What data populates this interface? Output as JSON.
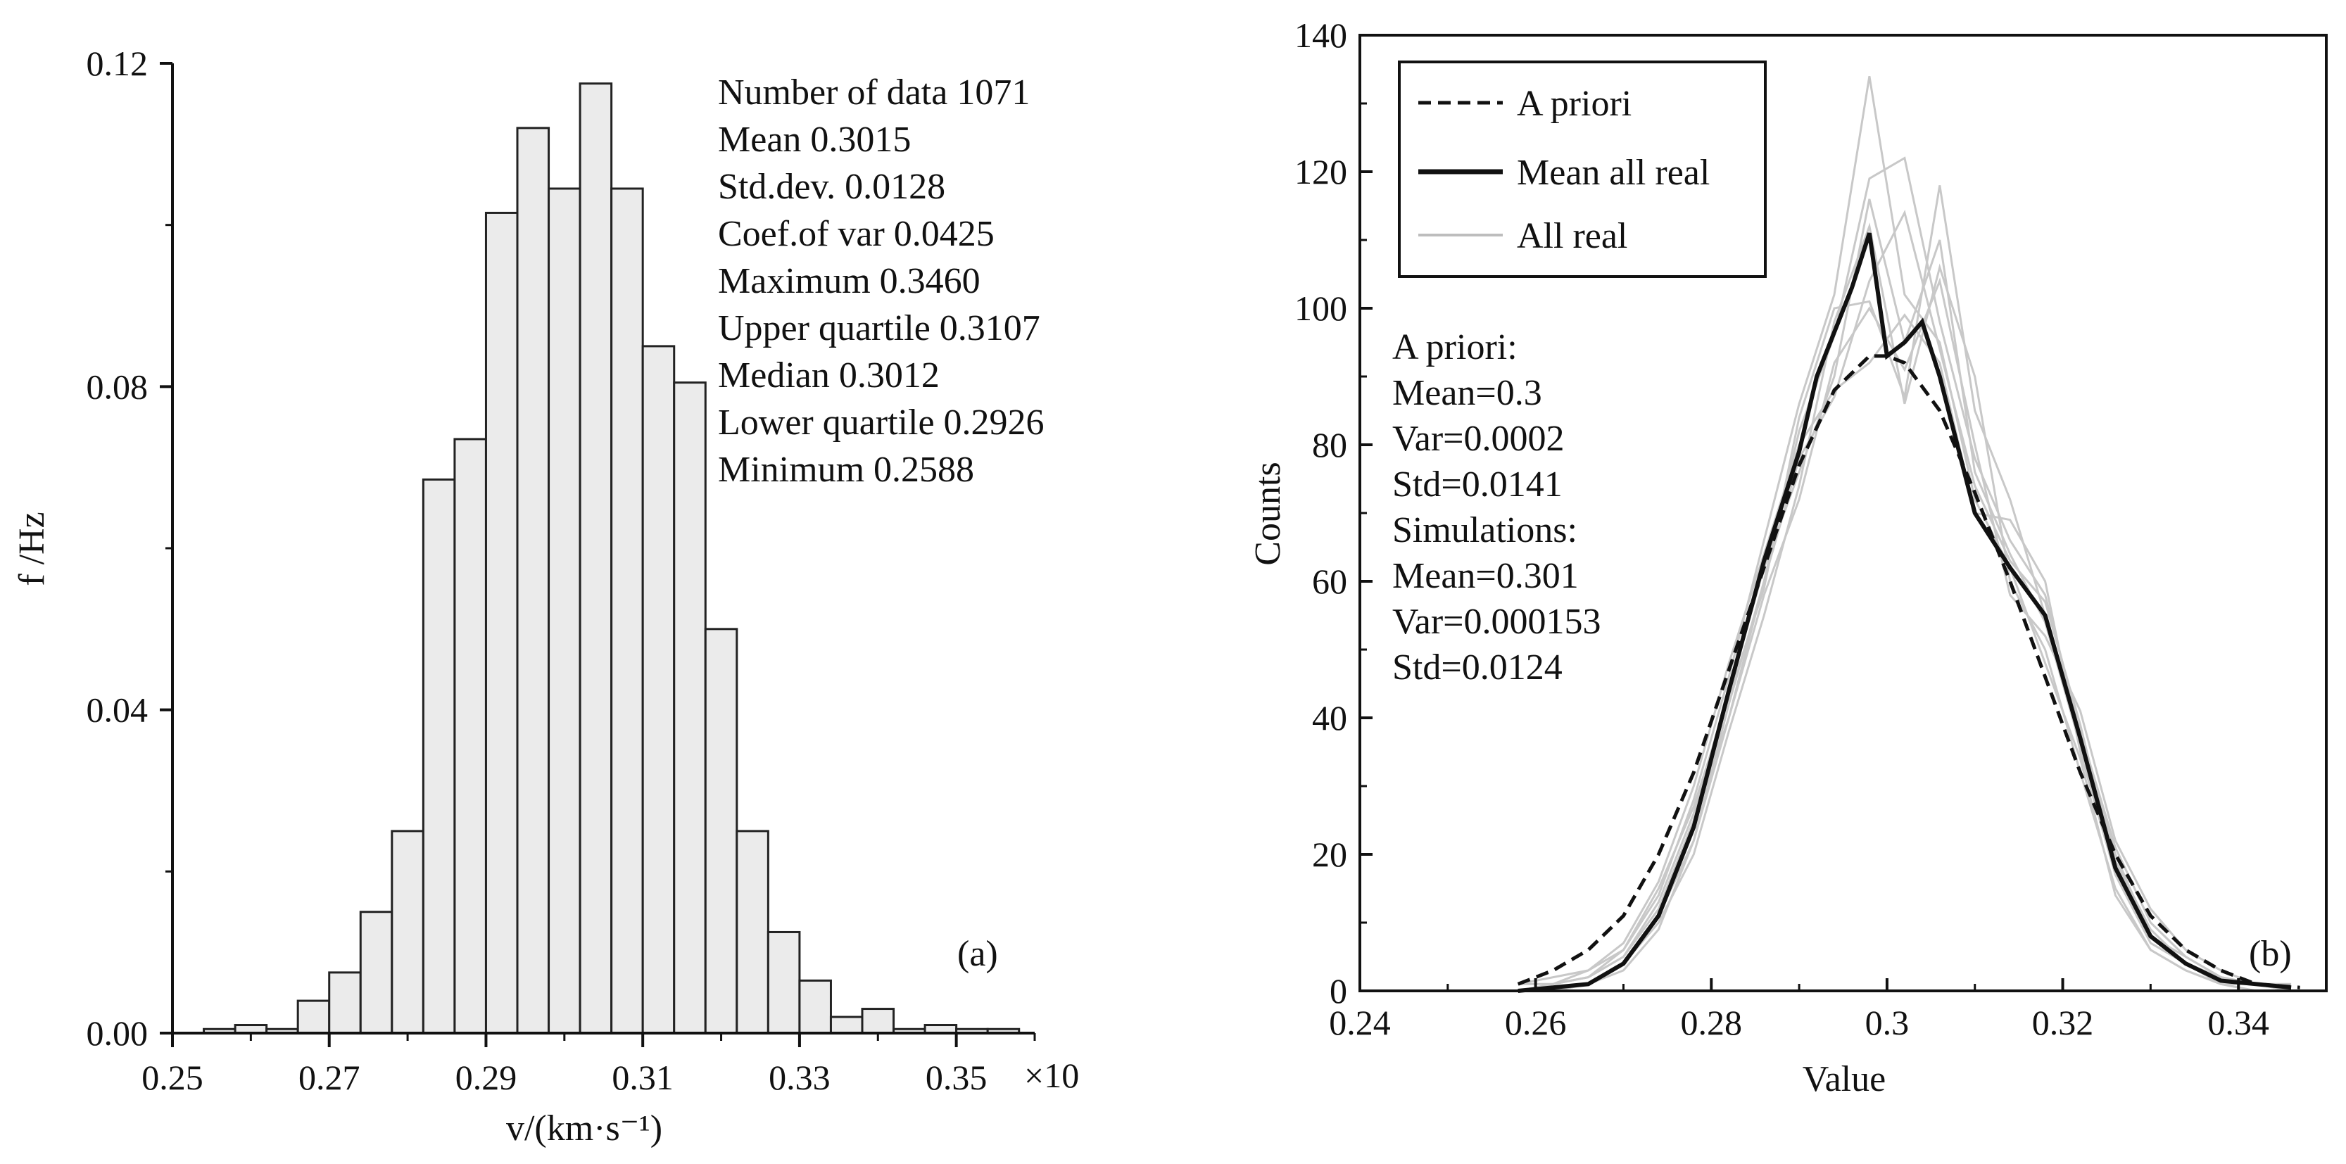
{
  "chart_data": [
    {
      "panel": "a",
      "type": "bar",
      "panel_label": "(a)",
      "ylabel": "f /Hz",
      "xlabel": "v/(km·s⁻¹)",
      "x_multiplier": "×10",
      "xlim": [
        0.25,
        0.36
      ],
      "ylim": [
        0,
        0.12
      ],
      "xticks": [
        "0.25",
        "0.27",
        "0.29",
        "0.31",
        "0.33",
        "0.35"
      ],
      "yticks": [
        "0.00",
        "0.04",
        "0.08",
        "0.12"
      ],
      "bin_width": 0.004,
      "bin_starts": [
        0.254,
        0.258,
        0.262,
        0.266,
        0.27,
        0.274,
        0.278,
        0.282,
        0.286,
        0.29,
        0.294,
        0.298,
        0.302,
        0.306,
        0.31,
        0.314,
        0.318,
        0.322,
        0.326,
        0.33,
        0.334,
        0.338,
        0.342,
        0.346,
        0.35,
        0.354
      ],
      "values": [
        0.0005,
        0.001,
        0.0005,
        0.004,
        0.0075,
        0.015,
        0.025,
        0.0685,
        0.0735,
        0.1015,
        0.112,
        0.1045,
        0.1175,
        0.1045,
        0.085,
        0.0805,
        0.05,
        0.025,
        0.0125,
        0.0065,
        0.002,
        0.003,
        0.0005,
        0.001,
        0.0005,
        0.0005
      ],
      "stats": [
        "Number of data  1071",
        "Mean  0.3015",
        "Std.dev.  0.0128",
        "Coef.of var  0.0425",
        "Maximum  0.3460",
        "Upper quartile  0.3107",
        "Median  0.3012",
        "Lower quartile  0.2926",
        "Minimum  0.2588"
      ]
    },
    {
      "panel": "b",
      "type": "line",
      "panel_label": "(b)",
      "xlabel": "Value",
      "ylabel": "Counts",
      "xlim": [
        0.24,
        0.35
      ],
      "ylim": [
        0,
        140
      ],
      "xticks": [
        "0.24",
        "0.26",
        "0.28",
        "0.3",
        "0.32",
        "0.34"
      ],
      "yticks": [
        "0",
        "20",
        "40",
        "60",
        "80",
        "100",
        "120",
        "140"
      ],
      "legend": {
        "placement": "top-left",
        "entries": [
          "A priori",
          "Mean all real",
          "All real"
        ]
      },
      "annotation": [
        "A priori:",
        "Mean=0.3",
        "Var=0.0002",
        "Std=0.0141",
        "Simulations:",
        "Mean=0.301",
        "Var=0.000153",
        "Std=0.0124"
      ],
      "series": [
        {
          "name": "A priori",
          "style": "dashed",
          "x": [
            0.258,
            0.262,
            0.266,
            0.27,
            0.274,
            0.278,
            0.282,
            0.286,
            0.29,
            0.294,
            0.298,
            0.3,
            0.302,
            0.306,
            0.31,
            0.314,
            0.318,
            0.322,
            0.326,
            0.33,
            0.334,
            0.338,
            0.342,
            0.347
          ],
          "y": [
            1,
            3,
            6,
            11,
            20,
            32,
            47,
            62,
            77,
            88,
            93,
            93,
            92,
            85,
            73,
            60,
            46,
            32,
            20,
            11,
            6,
            3,
            1,
            0.5
          ]
        },
        {
          "name": "Mean all real",
          "style": "solid",
          "x": [
            0.258,
            0.262,
            0.266,
            0.27,
            0.274,
            0.278,
            0.282,
            0.286,
            0.29,
            0.292,
            0.296,
            0.298,
            0.3,
            0.302,
            0.304,
            0.306,
            0.31,
            0.314,
            0.318,
            0.322,
            0.326,
            0.33,
            0.332,
            0.334,
            0.338,
            0.342,
            0.346
          ],
          "y": [
            0,
            0.5,
            1,
            4,
            11,
            24,
            44,
            63,
            79,
            90,
            103,
            111,
            93,
            95,
            98,
            90,
            70,
            62,
            55,
            37,
            18,
            8,
            6,
            4,
            1.5,
            1,
            0.5
          ]
        },
        {
          "name": "All real",
          "style": "light",
          "x": [
            0.258,
            0.262,
            0.266,
            0.27,
            0.274,
            0.278,
            0.282,
            0.286,
            0.29,
            0.294,
            0.298,
            0.302,
            0.306,
            0.31,
            0.314,
            0.318,
            0.322,
            0.326,
            0.33,
            0.334,
            0.338,
            0.342,
            0.346
          ],
          "realizations": [
            [
              0,
              1,
              2,
              6,
              14,
              28,
              46,
              66,
              86,
              102,
              134,
              102,
              95,
              72,
              62,
              48,
              34,
              14,
              6,
              3,
              1,
              0,
              0
            ],
            [
              0,
              0,
              1,
              3,
              9,
              22,
              42,
              60,
              82,
              96,
              119,
              122,
              98,
              78,
              66,
              58,
              38,
              20,
              8,
              5,
              2,
              1,
              0
            ],
            [
              1,
              1,
              2,
              5,
              12,
              25,
              40,
              58,
              72,
              92,
              100,
              91,
              104,
              80,
              58,
              52,
              41,
              22,
              12,
              6,
              3,
              1,
              0
            ],
            [
              0,
              1,
              3,
              7,
              16,
              30,
              48,
              64,
              80,
              88,
              92,
              99,
              92,
              70,
              69,
              60,
              35,
              17,
              7,
              4,
              1,
              1,
              0
            ],
            [
              0,
              0,
              1,
              4,
              10,
              20,
              38,
              55,
              74,
              98,
              112,
              86,
              106,
              90,
              60,
              50,
              32,
              15,
              6,
              3,
              1,
              0,
              0
            ],
            [
              0,
              1,
              2,
              5,
              13,
              26,
              44,
              62,
              76,
              90,
              116,
              95,
              110,
              76,
              64,
              54,
              36,
              19,
              9,
              4,
              2,
              1,
              0
            ],
            [
              1,
              2,
              3,
              6,
              15,
              27,
              43,
              59,
              84,
              100,
              101,
              87,
              118,
              85,
              72,
              55,
              38,
              21,
              10,
              5,
              2,
              1,
              1
            ],
            [
              0,
              0,
              1,
              4,
              11,
              22,
              40,
              60,
              78,
              87,
              104,
              114,
              94,
              74,
              63,
              57,
              39,
              18,
              8,
              4,
              1,
              1,
              0
            ]
          ]
        }
      ]
    }
  ]
}
